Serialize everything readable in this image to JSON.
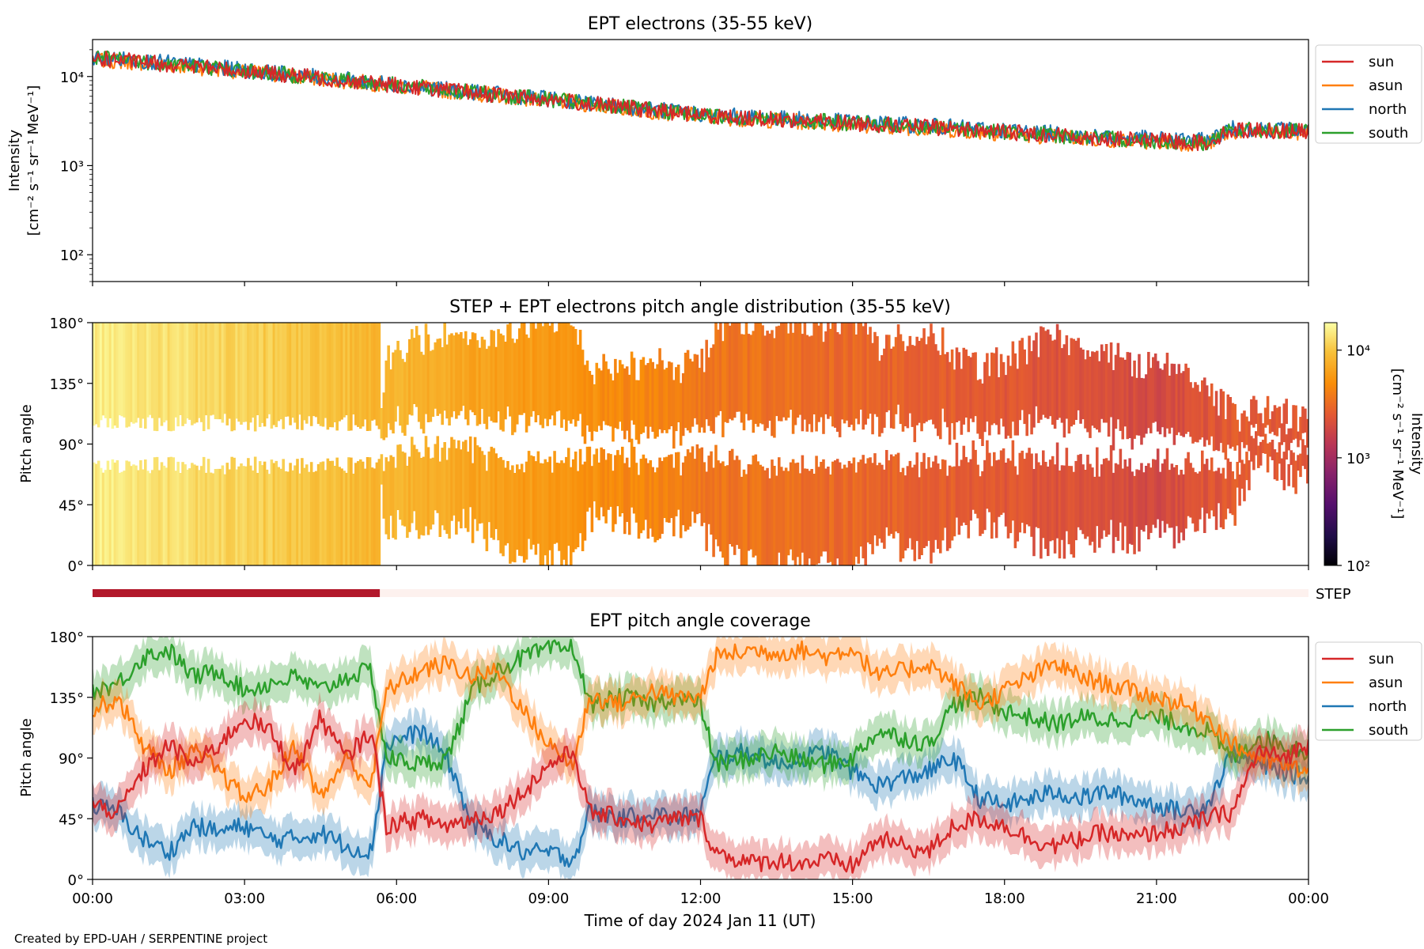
{
  "footer": {
    "credit": "Created by EPD-UAH / SERPENTINE project"
  },
  "colors": {
    "sun": "#d62728",
    "asun": "#ff7f0e",
    "north": "#1f77b4",
    "south": "#2ca02c",
    "step_bar": "#b2182b"
  },
  "chart_data": [
    {
      "type": "line",
      "title": "EPT electrons (35-55 keV)",
      "ylabel": [
        "Intensity",
        "[cm⁻² s⁻¹ sr⁻¹ MeV⁻¹]"
      ],
      "yscale": "log",
      "ylim": [
        50,
        26000
      ],
      "yticks": [
        {
          "value": 100,
          "label": "10²"
        },
        {
          "value": 1000,
          "label": "10³"
        },
        {
          "value": 10000,
          "label": "10⁴"
        }
      ],
      "xlim_hours": [
        0,
        24
      ],
      "legend": "outside-right",
      "grid": false,
      "series": [
        {
          "name": "sun",
          "color": "#d62728",
          "x": [
            0,
            1,
            2,
            3,
            4,
            5,
            6,
            7,
            8,
            9,
            10,
            11,
            12,
            13,
            14,
            15,
            16,
            17,
            18,
            19,
            20,
            21,
            22,
            22.5,
            23,
            24
          ],
          "y": [
            16000,
            14500,
            13000,
            11500,
            10200,
            9000,
            8000,
            7000,
            6200,
            5500,
            4800,
            4200,
            3700,
            3400,
            3200,
            3000,
            2800,
            2600,
            2400,
            2200,
            2000,
            1900,
            1800,
            2500,
            2500,
            2400
          ]
        },
        {
          "name": "asun",
          "color": "#ff7f0e",
          "x": [
            0,
            1,
            2,
            3,
            4,
            5,
            6,
            7,
            8,
            9,
            10,
            11,
            12,
            13,
            14,
            15,
            16,
            17,
            18,
            19,
            20,
            21,
            22,
            22.5,
            23,
            24
          ],
          "y": [
            15500,
            14200,
            12800,
            11300,
            10000,
            8900,
            7900,
            6900,
            6100,
            5400,
            4700,
            4100,
            3600,
            3300,
            3100,
            2900,
            2700,
            2500,
            2300,
            2100,
            1950,
            1850,
            1750,
            2400,
            2400,
            2300
          ]
        },
        {
          "name": "north",
          "color": "#1f77b4",
          "x": [
            0,
            1,
            2,
            3,
            4,
            5,
            6,
            7,
            8,
            9,
            10,
            11,
            12,
            13,
            14,
            15,
            16,
            17,
            18,
            19,
            20,
            21,
            22,
            22.5,
            23,
            24
          ],
          "y": [
            16500,
            15000,
            13400,
            11800,
            10400,
            9200,
            8100,
            7100,
            6300,
            5600,
            4900,
            4300,
            3800,
            3500,
            3300,
            3100,
            2900,
            2700,
            2500,
            2300,
            2100,
            2000,
            1900,
            2600,
            2600,
            2500
          ]
        },
        {
          "name": "south",
          "color": "#2ca02c",
          "x": [
            0,
            1,
            2,
            3,
            4,
            5,
            6,
            7,
            8,
            9,
            10,
            11,
            12,
            13,
            14,
            15,
            16,
            17,
            18,
            19,
            20,
            21,
            22,
            22.5,
            23,
            24
          ],
          "y": [
            16200,
            14800,
            13200,
            11600,
            10300,
            9100,
            8000,
            7000,
            6200,
            5500,
            4800,
            4200,
            3700,
            3400,
            3200,
            3000,
            2800,
            2600,
            2400,
            2200,
            2000,
            1900,
            1800,
            2500,
            2500,
            2400
          ]
        }
      ]
    },
    {
      "type": "heatmap",
      "title": "STEP + EPT electrons pitch angle distribution (35-55 keV)",
      "ylabel": "Pitch angle",
      "ylim": [
        0,
        180
      ],
      "yticks": [
        "0°",
        "45°",
        "90°",
        "135°",
        "180°"
      ],
      "colorbar": {
        "label": [
          "Intensity",
          "[cm⁻² s⁻¹ sr⁻¹ MeV⁻¹]"
        ],
        "scale": "log",
        "range": [
          100,
          18000
        ],
        "ticks": [
          "10²",
          "10³",
          "10⁴"
        ]
      },
      "intensity_hours": [
        0,
        3,
        6,
        9,
        12,
        15,
        18,
        21,
        22.5,
        24
      ],
      "intensity_values": [
        15000,
        11500,
        8000,
        5500,
        3700,
        3000,
        2400,
        1900,
        2500,
        2400
      ]
    },
    {
      "type": "bar",
      "label": "STEP",
      "coverage_hours": [
        0,
        5.67
      ]
    },
    {
      "type": "line",
      "title": "EPT pitch angle coverage",
      "ylabel": "Pitch angle",
      "xlabel": "Time of day 2024 Jan 11 (UT)",
      "ylim": [
        0,
        180
      ],
      "yticks": [
        "0°",
        "45°",
        "90°",
        "135°",
        "180°"
      ],
      "xticks": [
        "00:00",
        "03:00",
        "06:00",
        "09:00",
        "12:00",
        "15:00",
        "18:00",
        "21:00",
        "00:00"
      ],
      "xlim_hours": [
        0,
        24
      ],
      "legend": "outside-right",
      "grid": false,
      "series": [
        {
          "name": "sun",
          "color": "#d62728",
          "x": [
            0,
            0.5,
            1,
            1.5,
            2,
            2.5,
            3,
            3.5,
            4,
            4.5,
            5,
            5.5,
            5.8,
            6.5,
            7,
            7.5,
            8,
            8.5,
            9,
            9.5,
            9.8,
            10.5,
            11,
            11.5,
            12,
            12.3,
            13,
            13.5,
            14,
            14.5,
            15,
            15.5,
            16,
            16.5,
            17,
            17.5,
            18,
            18.5,
            19,
            19.5,
            20,
            20.5,
            21,
            21.5,
            22,
            22.5,
            23,
            23.5,
            24
          ],
          "y": [
            55,
            50,
            80,
            100,
            85,
            100,
            120,
            110,
            80,
            120,
            90,
            110,
            40,
            45,
            40,
            45,
            50,
            65,
            85,
            95,
            50,
            45,
            40,
            45,
            45,
            20,
            12,
            14,
            12,
            14,
            10,
            30,
            25,
            20,
            40,
            45,
            40,
            30,
            25,
            30,
            35,
            30,
            35,
            38,
            45,
            50,
            95,
            90,
            100
          ]
        },
        {
          "name": "asun",
          "color": "#ff7f0e",
          "x": [
            0,
            0.5,
            1,
            1.5,
            2,
            2.5,
            3,
            3.5,
            4,
            4.5,
            5,
            5.5,
            5.8,
            6.5,
            7,
            7.5,
            8,
            8.5,
            9,
            9.5,
            9.8,
            10.5,
            11,
            11.5,
            12,
            12.3,
            13,
            13.5,
            14,
            14.5,
            15,
            15.5,
            16,
            16.5,
            17,
            17.5,
            18,
            18.5,
            19,
            19.5,
            20,
            20.5,
            21,
            21.5,
            22,
            22.5,
            23,
            23.5,
            24
          ],
          "y": [
            125,
            135,
            100,
            80,
            95,
            80,
            60,
            70,
            100,
            60,
            90,
            70,
            140,
            155,
            160,
            150,
            155,
            125,
            100,
            85,
            135,
            130,
            140,
            135,
            135,
            165,
            170,
            168,
            170,
            165,
            172,
            150,
            155,
            160,
            145,
            130,
            140,
            150,
            160,
            150,
            145,
            140,
            135,
            130,
            120,
            100,
            90,
            85,
            80
          ]
        },
        {
          "name": "north",
          "color": "#1f77b4",
          "x": [
            0,
            0.5,
            1,
            1.5,
            2,
            2.5,
            3,
            3.5,
            4,
            4.5,
            5,
            5.5,
            5.8,
            6.5,
            7,
            7.5,
            8,
            8.5,
            9,
            9.5,
            9.8,
            10.5,
            11,
            11.5,
            12,
            12.3,
            13,
            13.5,
            14,
            14.5,
            15,
            15.5,
            16,
            16.5,
            17,
            17.5,
            18,
            18.5,
            19,
            19.5,
            20,
            20.5,
            21,
            21.5,
            22,
            22.5,
            23,
            23.5,
            24
          ],
          "y": [
            55,
            50,
            30,
            20,
            40,
            35,
            40,
            30,
            30,
            35,
            25,
            20,
            100,
            110,
            90,
            40,
            30,
            20,
            20,
            15,
            50,
            45,
            50,
            45,
            50,
            90,
            95,
            85,
            90,
            95,
            80,
            70,
            75,
            80,
            90,
            60,
            55,
            60,
            65,
            60,
            65,
            60,
            55,
            50,
            55,
            95,
            85,
            80,
            75
          ]
        },
        {
          "name": "south",
          "color": "#2ca02c",
          "x": [
            0,
            0.5,
            1,
            1.5,
            2,
            2.5,
            3,
            3.5,
            4,
            4.5,
            5,
            5.5,
            5.8,
            6.5,
            7,
            7.5,
            8,
            8.5,
            9,
            9.5,
            9.8,
            10.5,
            11,
            11.5,
            12,
            12.3,
            13,
            13.5,
            14,
            14.5,
            15,
            15.5,
            16,
            16.5,
            17,
            17.5,
            18,
            18.5,
            19,
            19.5,
            20,
            20.5,
            21,
            21.5,
            22,
            22.5,
            23,
            23.5,
            24
          ],
          "y": [
            140,
            145,
            165,
            170,
            150,
            155,
            140,
            145,
            150,
            140,
            150,
            155,
            90,
            85,
            90,
            140,
            155,
            165,
            170,
            172,
            130,
            135,
            130,
            135,
            130,
            85,
            90,
            95,
            88,
            85,
            90,
            110,
            105,
            100,
            130,
            135,
            125,
            120,
            115,
            120,
            118,
            120,
            120,
            115,
            110,
            90,
            105,
            100,
            95
          ]
        }
      ]
    }
  ]
}
